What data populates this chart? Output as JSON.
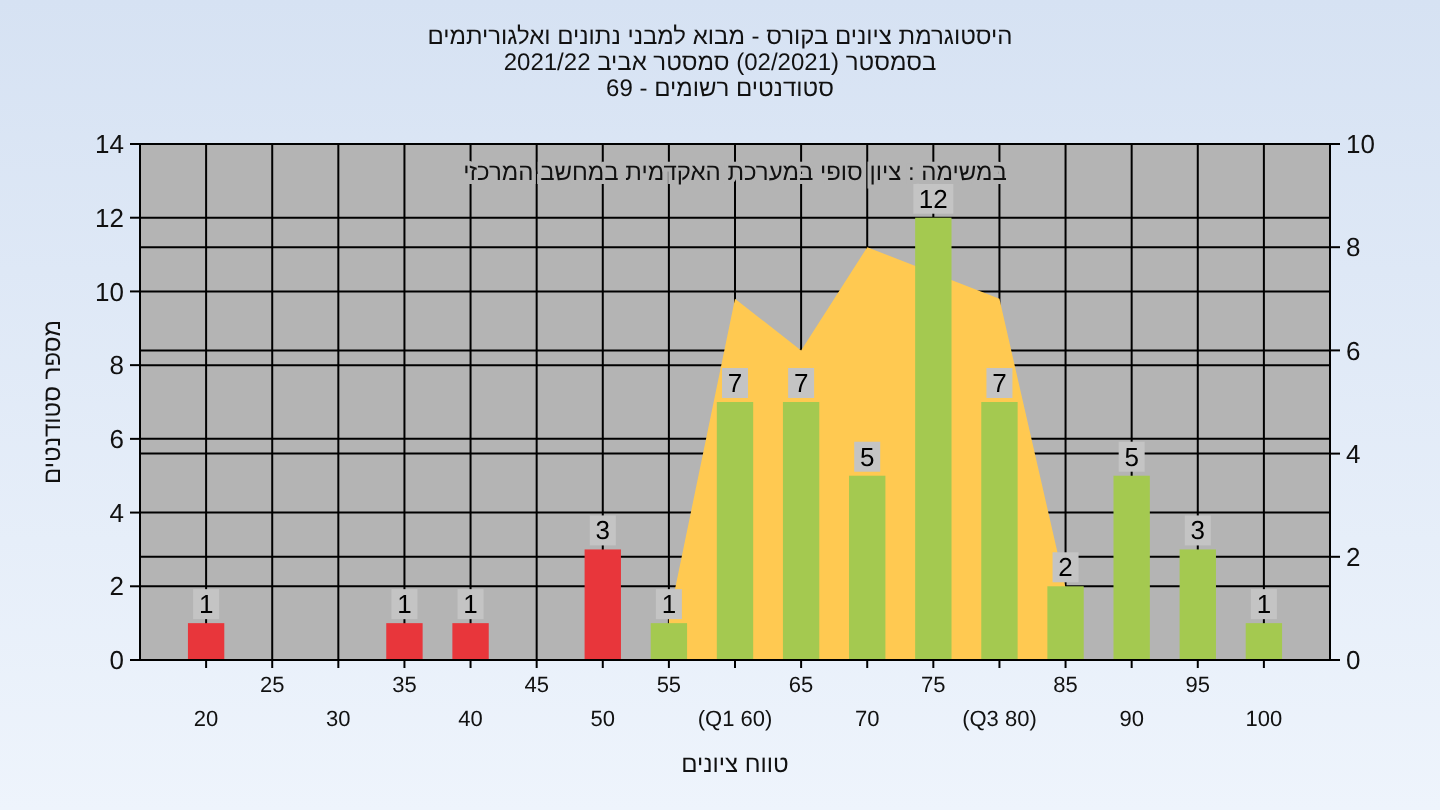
{
  "chart_data": {
    "type": "bar",
    "title": "היסטוגרמת ציונים בקורס - מבוא למבני נתונים ואלגוריתמים",
    "subtitle": "בסמסטר (02/2021) סמסטר אביב 2021/22\nסטודנטים רשומים - 69",
    "xlabel": "טווח ציונים",
    "ylabel": "מספר סטודנטים",
    "annotations": [
      "במשימה : ציון סופי במערכת האקדמית במחשב המרכזי"
    ],
    "categories": [
      "20",
      "25",
      "30",
      "35",
      "40",
      "45",
      "50",
      "55",
      "(Q1 60)",
      "65",
      "70",
      "75",
      "(Q3 80)",
      "85",
      "90",
      "95",
      "100"
    ],
    "series": [
      {
        "type": "area",
        "axis": "y2",
        "color": "#ffc951",
        "values": [
          null,
          null,
          null,
          null,
          null,
          null,
          null,
          0.8,
          7,
          6,
          8,
          null,
          7,
          1.4,
          null,
          null,
          null
        ]
      },
      {
        "colors": [
          "#e8363b",
          null,
          null,
          "#e8363b",
          "#e8363b",
          null,
          "#e8363b",
          "#a4c950",
          "#a4c950",
          "#a4c950",
          "#a4c950",
          "#a4c950",
          "#a4c950",
          "#a4c950",
          "#a4c950",
          "#a4c950",
          "#a4c950"
        ],
        "values": [
          1,
          null,
          null,
          1,
          1,
          null,
          3,
          1,
          7,
          7,
          5,
          12,
          7,
          2,
          5,
          3,
          1
        ],
        "data_labels": true
      }
    ],
    "ylim": [
      0,
      14
    ],
    "yticks": [
      0,
      2,
      4,
      6,
      8,
      10,
      12,
      14
    ],
    "y2lim": [
      0,
      10
    ],
    "y2ticks": [
      0,
      2,
      4,
      6,
      8,
      10
    ],
    "grid": true
  }
}
